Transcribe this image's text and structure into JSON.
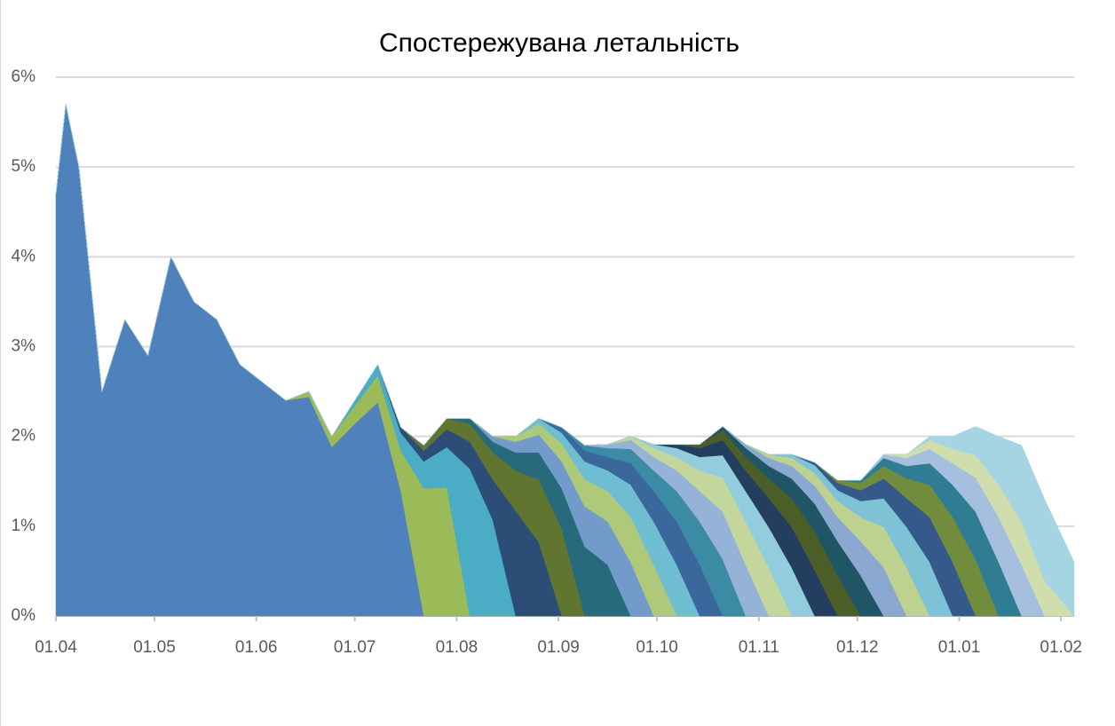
{
  "chart_data": {
    "type": "stacked-area",
    "title": "Спостережувана летальність",
    "x": [
      "01.04",
      "04.04",
      "08.04",
      "15.04",
      "22.04",
      "29.04",
      "06.05",
      "13.05",
      "20.05",
      "27.05",
      "03.06",
      "10.06",
      "17.06",
      "24.06",
      "01.07",
      "08.07",
      "15.07",
      "22.07",
      "29.07",
      "05.08",
      "12.08",
      "19.08",
      "26.08",
      "02.09",
      "09.09",
      "16.09",
      "23.09",
      "30.09",
      "07.10",
      "14.10",
      "21.10",
      "28.10",
      "04.11",
      "11.11",
      "18.11",
      "25.11",
      "02.12",
      "09.12",
      "16.12",
      "23.12",
      "30.12",
      "06.01",
      "13.01",
      "20.01",
      "27.01",
      "05.02"
    ],
    "xlim": [
      "01.04",
      "05.02"
    ],
    "xticks": [
      "01.04",
      "01.05",
      "01.06",
      "01.07",
      "01.08",
      "01.09",
      "01.10",
      "01.11",
      "01.12",
      "01.01",
      "01.02"
    ],
    "ylim": [
      0,
      6
    ],
    "yticks": [
      {
        "value": 0,
        "label": "0%"
      },
      {
        "value": 1,
        "label": "1%"
      },
      {
        "value": 2,
        "label": "2%"
      },
      {
        "value": 3,
        "label": "3%"
      },
      {
        "value": 4,
        "label": "4%"
      },
      {
        "value": 5,
        "label": "5%"
      },
      {
        "value": 6,
        "label": "6%"
      }
    ],
    "grid": true,
    "series": [
      {
        "color": "#4f81bd",
        "values": [
          4.7,
          5.7,
          5.0,
          2.5,
          3.3,
          2.9,
          4.0,
          3.5,
          3.3,
          2.8,
          2.6,
          2.4,
          2.44,
          1.88,
          2.14,
          2.38,
          1.39,
          0,
          0,
          0,
          0,
          0,
          0,
          0,
          0,
          0,
          0,
          0,
          0,
          0,
          0,
          0,
          0,
          0,
          0,
          0,
          0,
          0,
          0,
          0,
          0,
          0,
          0,
          0,
          0,
          0
        ]
      },
      {
        "color": "#9bbb59",
        "values": [
          0,
          0,
          0,
          0,
          0,
          0,
          0,
          0,
          0,
          0,
          0,
          0,
          0.06,
          0.12,
          0.2,
          0.3,
          0.45,
          1.42,
          1.43,
          0,
          0,
          0,
          0,
          0,
          0,
          0,
          0,
          0,
          0,
          0,
          0,
          0,
          0,
          0,
          0,
          0,
          0,
          0,
          0,
          0,
          0,
          0,
          0,
          0,
          0,
          0
        ]
      },
      {
        "color": "#4bacc6",
        "values": [
          0,
          0,
          0,
          0,
          0,
          0,
          0,
          0,
          0,
          0,
          0,
          0,
          0,
          0,
          0.06,
          0.12,
          0.2,
          0.3,
          0.45,
          1.64,
          1.07,
          0,
          0,
          0,
          0,
          0,
          0,
          0,
          0,
          0,
          0,
          0,
          0,
          0,
          0,
          0,
          0,
          0,
          0,
          0,
          0,
          0,
          0,
          0,
          0,
          0
        ]
      },
      {
        "color": "#2c4d75",
        "values": [
          0,
          0,
          0,
          0,
          0,
          0,
          0,
          0,
          0,
          0,
          0,
          0,
          0,
          0,
          0,
          0,
          0.06,
          0.12,
          0.2,
          0.3,
          0.45,
          1.17,
          0.82,
          0,
          0,
          0,
          0,
          0,
          0,
          0,
          0,
          0,
          0,
          0,
          0,
          0,
          0,
          0,
          0,
          0,
          0,
          0,
          0,
          0,
          0,
          0
        ]
      },
      {
        "color": "#5f7530",
        "values": [
          0,
          0,
          0,
          0,
          0,
          0,
          0,
          0,
          0,
          0,
          0,
          0,
          0,
          0,
          0,
          0,
          0,
          0.06,
          0.12,
          0.2,
          0.3,
          0.45,
          0.7,
          0.97,
          0,
          0,
          0,
          0,
          0,
          0,
          0,
          0,
          0,
          0,
          0,
          0,
          0,
          0,
          0,
          0,
          0,
          0,
          0,
          0,
          0,
          0
        ]
      },
      {
        "color": "#276a7c",
        "values": [
          0,
          0,
          0,
          0,
          0,
          0,
          0,
          0,
          0,
          0,
          0,
          0,
          0,
          0,
          0,
          0,
          0,
          0,
          0,
          0.06,
          0.12,
          0.2,
          0.3,
          0.45,
          0.77,
          0.57,
          0,
          0,
          0,
          0,
          0,
          0,
          0,
          0,
          0,
          0,
          0,
          0,
          0,
          0,
          0,
          0,
          0,
          0,
          0,
          0
        ]
      },
      {
        "color": "#729aca",
        "values": [
          0,
          0,
          0,
          0,
          0,
          0,
          0,
          0,
          0,
          0,
          0,
          0,
          0,
          0,
          0,
          0,
          0,
          0,
          0,
          0,
          0.06,
          0.12,
          0.2,
          0.3,
          0.45,
          0.48,
          0.6,
          0,
          0,
          0,
          0,
          0,
          0,
          0,
          0,
          0,
          0,
          0,
          0,
          0,
          0,
          0,
          0,
          0,
          0,
          0
        ]
      },
      {
        "color": "#afc97a",
        "values": [
          0,
          0,
          0,
          0,
          0,
          0,
          0,
          0,
          0,
          0,
          0,
          0,
          0,
          0,
          0,
          0,
          0,
          0,
          0,
          0,
          0,
          0.06,
          0.12,
          0.2,
          0.3,
          0.34,
          0.5,
          0.57,
          0,
          0,
          0,
          0,
          0,
          0,
          0,
          0,
          0,
          0,
          0,
          0,
          0,
          0,
          0,
          0,
          0,
          0
        ]
      },
      {
        "color": "#6fbdd1",
        "values": [
          0,
          0,
          0,
          0,
          0,
          0,
          0,
          0,
          0,
          0,
          0,
          0,
          0,
          0,
          0,
          0,
          0,
          0,
          0,
          0,
          0,
          0,
          0.06,
          0.12,
          0.2,
          0.23,
          0.36,
          0.48,
          0.57,
          0,
          0,
          0,
          0,
          0,
          0,
          0,
          0,
          0,
          0,
          0,
          0,
          0,
          0,
          0,
          0,
          0
        ]
      },
      {
        "color": "#3a679c",
        "values": [
          0,
          0,
          0,
          0,
          0,
          0,
          0,
          0,
          0,
          0,
          0,
          0,
          0,
          0,
          0,
          0,
          0,
          0,
          0,
          0,
          0,
          0,
          0,
          0.06,
          0.12,
          0.15,
          0.24,
          0.34,
          0.48,
          0.57,
          0,
          0,
          0,
          0,
          0,
          0,
          0,
          0,
          0,
          0,
          0,
          0,
          0,
          0,
          0,
          0
        ]
      },
      {
        "color": "#3a8ba3",
        "values": [
          0,
          0,
          0,
          0,
          0,
          0,
          0,
          0,
          0,
          0,
          0,
          0,
          0,
          0,
          0,
          0,
          0,
          0,
          0,
          0,
          0,
          0,
          0,
          0,
          0.06,
          0.1,
          0.16,
          0.23,
          0.34,
          0.48,
          0.63,
          0,
          0,
          0,
          0,
          0,
          0,
          0,
          0,
          0,
          0,
          0,
          0,
          0,
          0,
          0
        ]
      },
      {
        "color": "#95b3d7",
        "values": [
          0,
          0,
          0,
          0,
          0,
          0,
          0,
          0,
          0,
          0,
          0,
          0,
          0,
          0,
          0,
          0,
          0,
          0,
          0,
          0,
          0,
          0,
          0,
          0,
          0,
          0.04,
          0.1,
          0.15,
          0.23,
          0.34,
          0.53,
          0.57,
          0,
          0,
          0,
          0,
          0,
          0,
          0,
          0,
          0,
          0,
          0,
          0,
          0,
          0
        ]
      },
      {
        "color": "#c3d69b",
        "values": [
          0,
          0,
          0,
          0,
          0,
          0,
          0,
          0,
          0,
          0,
          0,
          0,
          0,
          0,
          0,
          0,
          0,
          0,
          0,
          0,
          0,
          0,
          0,
          0,
          0,
          0,
          0.04,
          0.1,
          0.15,
          0.23,
          0.38,
          0.48,
          0.54,
          0,
          0,
          0,
          0,
          0,
          0,
          0,
          0,
          0,
          0,
          0,
          0,
          0
        ]
      },
      {
        "color": "#93cddd",
        "values": [
          0,
          0,
          0,
          0,
          0,
          0,
          0,
          0,
          0,
          0,
          0,
          0,
          0,
          0,
          0,
          0,
          0,
          0,
          0,
          0,
          0,
          0,
          0,
          0,
          0,
          0,
          0,
          0.04,
          0.1,
          0.15,
          0.25,
          0.34,
          0.45,
          0.54,
          0,
          0,
          0,
          0,
          0,
          0,
          0,
          0,
          0,
          0,
          0,
          0
        ]
      },
      {
        "color": "#233e5f",
        "values": [
          0,
          0,
          0,
          0,
          0,
          0,
          0,
          0,
          0,
          0,
          0,
          0,
          0,
          0,
          0,
          0,
          0,
          0,
          0,
          0,
          0,
          0,
          0,
          0,
          0,
          0,
          0,
          0,
          0.04,
          0.1,
          0.17,
          0.23,
          0.32,
          0.45,
          0.51,
          0,
          0,
          0,
          0,
          0,
          0,
          0,
          0,
          0,
          0,
          0
        ]
      },
      {
        "color": "#4c5e27",
        "values": [
          0,
          0,
          0,
          0,
          0,
          0,
          0,
          0,
          0,
          0,
          0,
          0,
          0,
          0,
          0,
          0,
          0,
          0,
          0,
          0,
          0,
          0,
          0,
          0,
          0,
          0,
          0,
          0,
          0,
          0.04,
          0.11,
          0.15,
          0.22,
          0.32,
          0.43,
          0.45,
          0,
          0,
          0,
          0,
          0,
          0,
          0,
          0,
          0,
          0
        ]
      },
      {
        "color": "#1f5564",
        "values": [
          0,
          0,
          0,
          0,
          0,
          0,
          0,
          0,
          0,
          0,
          0,
          0,
          0,
          0,
          0,
          0,
          0,
          0,
          0,
          0,
          0,
          0,
          0,
          0,
          0,
          0,
          0,
          0,
          0,
          0,
          0.04,
          0.1,
          0.14,
          0.22,
          0.31,
          0.38,
          0.45,
          0,
          0,
          0,
          0,
          0,
          0,
          0,
          0,
          0
        ]
      },
      {
        "color": "#8aa8d0",
        "values": [
          0,
          0,
          0,
          0,
          0,
          0,
          0,
          0,
          0,
          0,
          0,
          0,
          0,
          0,
          0,
          0,
          0,
          0,
          0,
          0,
          0,
          0,
          0,
          0,
          0,
          0,
          0,
          0,
          0,
          0,
          0,
          0.04,
          0.09,
          0.14,
          0.2,
          0.27,
          0.38,
          0.54,
          0,
          0,
          0,
          0,
          0,
          0,
          0,
          0
        ]
      },
      {
        "color": "#bdd291",
        "values": [
          0,
          0,
          0,
          0,
          0,
          0,
          0,
          0,
          0,
          0,
          0,
          0,
          0,
          0,
          0,
          0,
          0,
          0,
          0,
          0,
          0,
          0,
          0,
          0,
          0,
          0,
          0,
          0,
          0,
          0,
          0,
          0,
          0.04,
          0.09,
          0.14,
          0.18,
          0.27,
          0.45,
          0.54,
          0,
          0,
          0,
          0,
          0,
          0,
          0
        ]
      },
      {
        "color": "#7ec2d6",
        "values": [
          0,
          0,
          0,
          0,
          0,
          0,
          0,
          0,
          0,
          0,
          0,
          0,
          0,
          0,
          0,
          0,
          0,
          0,
          0,
          0,
          0,
          0,
          0,
          0,
          0,
          0,
          0,
          0,
          0,
          0,
          0,
          0,
          0,
          0.04,
          0.09,
          0.12,
          0.18,
          0.32,
          0.45,
          0.6,
          0,
          0,
          0,
          0,
          0,
          0
        ]
      },
      {
        "color": "#34598a",
        "values": [
          0,
          0,
          0,
          0,
          0,
          0,
          0,
          0,
          0,
          0,
          0,
          0,
          0,
          0,
          0,
          0,
          0,
          0,
          0,
          0,
          0,
          0,
          0,
          0,
          0,
          0,
          0,
          0,
          0,
          0,
          0,
          0,
          0,
          0,
          0.03,
          0.08,
          0.12,
          0.22,
          0.32,
          0.5,
          0.6,
          0,
          0,
          0,
          0,
          0
        ]
      },
      {
        "color": "#728c3d",
        "values": [
          0,
          0,
          0,
          0,
          0,
          0,
          0,
          0,
          0,
          0,
          0,
          0,
          0,
          0,
          0,
          0,
          0,
          0,
          0,
          0,
          0,
          0,
          0,
          0,
          0,
          0,
          0,
          0,
          0,
          0,
          0,
          0,
          0,
          0,
          0,
          0.03,
          0.08,
          0.14,
          0.22,
          0.36,
          0.5,
          0.63,
          0,
          0,
          0,
          0
        ]
      },
      {
        "color": "#2f7d92",
        "values": [
          0,
          0,
          0,
          0,
          0,
          0,
          0,
          0,
          0,
          0,
          0,
          0,
          0,
          0,
          0,
          0,
          0,
          0,
          0,
          0,
          0,
          0,
          0,
          0,
          0,
          0,
          0,
          0,
          0,
          0,
          0,
          0,
          0,
          0,
          0,
          0,
          0.03,
          0.09,
          0.14,
          0.24,
          0.36,
          0.53,
          0.6,
          0,
          0,
          0
        ]
      },
      {
        "color": "#a7bfde",
        "values": [
          0,
          0,
          0,
          0,
          0,
          0,
          0,
          0,
          0,
          0,
          0,
          0,
          0,
          0,
          0,
          0,
          0,
          0,
          0,
          0,
          0,
          0,
          0,
          0,
          0,
          0,
          0,
          0,
          0,
          0,
          0,
          0,
          0,
          0,
          0,
          0,
          0,
          0.04,
          0.09,
          0.16,
          0.24,
          0.38,
          0.5,
          0.57,
          0,
          0
        ]
      },
      {
        "color": "#cfdeac",
        "values": [
          0,
          0,
          0,
          0,
          0,
          0,
          0,
          0,
          0,
          0,
          0,
          0,
          0,
          0,
          0,
          0,
          0,
          0,
          0,
          0,
          0,
          0,
          0,
          0,
          0,
          0,
          0,
          0,
          0,
          0,
          0,
          0,
          0,
          0,
          0,
          0,
          0,
          0,
          0.04,
          0.1,
          0.16,
          0.25,
          0.36,
          0.48,
          0.39,
          0
        ]
      },
      {
        "color": "#a5d5e2",
        "values": [
          0,
          0,
          0,
          0,
          0,
          0,
          0,
          0,
          0,
          0,
          0,
          0,
          0,
          0,
          0,
          0,
          0,
          0,
          0,
          0,
          0,
          0,
          0,
          0,
          0,
          0,
          0,
          0,
          0,
          0,
          0,
          0,
          0,
          0,
          0,
          0,
          0,
          0,
          0,
          0.04,
          0.14,
          0.32,
          0.54,
          0.85,
          0.91,
          0.6
        ]
      }
    ]
  }
}
